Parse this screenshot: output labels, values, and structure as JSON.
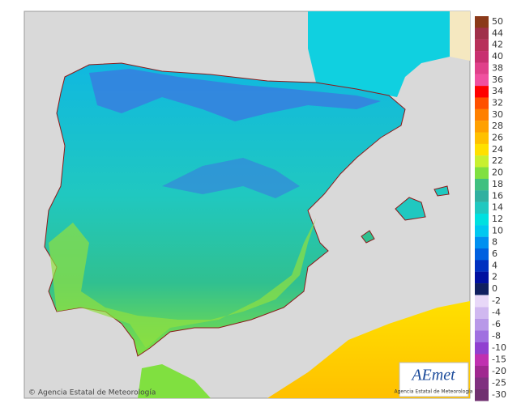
{
  "logo": {
    "name": "AEmet",
    "subtitle": "Agencia Estatal de Meteorología"
  },
  "credit": "© Agencia Estatal de Meteorología",
  "legend": {
    "items": [
      {
        "label": "50",
        "color": "#8b3a1a"
      },
      {
        "label": "44",
        "color": "#a0304a"
      },
      {
        "label": "42",
        "color": "#b8305a"
      },
      {
        "label": "40",
        "color": "#c83070"
      },
      {
        "label": "38",
        "color": "#e0408a"
      },
      {
        "label": "36",
        "color": "#f050a0"
      },
      {
        "label": "34",
        "color": "#ff0000"
      },
      {
        "label": "32",
        "color": "#ff5000"
      },
      {
        "label": "30",
        "color": "#ff8000"
      },
      {
        "label": "28",
        "color": "#ffa000"
      },
      {
        "label": "26",
        "color": "#ffc000"
      },
      {
        "label": "24",
        "color": "#ffe000"
      },
      {
        "label": "22",
        "color": "#c8f030"
      },
      {
        "label": "20",
        "color": "#80e040"
      },
      {
        "label": "18",
        "color": "#40c080"
      },
      {
        "label": "16",
        "color": "#30b0a0"
      },
      {
        "label": "14",
        "color": "#20c8c0"
      },
      {
        "label": "12",
        "color": "#00e0e0"
      },
      {
        "label": "10",
        "color": "#00c8f0"
      },
      {
        "label": "8",
        "color": "#0090f0"
      },
      {
        "label": "6",
        "color": "#0060e0"
      },
      {
        "label": "4",
        "color": "#0030c0"
      },
      {
        "label": "2",
        "color": "#0010a0"
      },
      {
        "label": "0",
        "color": "#102060"
      },
      {
        "label": "-2",
        "color": "#e8d8f8"
      },
      {
        "label": "-4",
        "color": "#d0b8f0"
      },
      {
        "label": "-6",
        "color": "#b898e8"
      },
      {
        "label": "-8",
        "color": "#a070e0"
      },
      {
        "label": "-10",
        "color": "#9040d0"
      },
      {
        "label": "-15",
        "color": "#c030b0"
      },
      {
        "label": "-20",
        "color": "#a02890"
      },
      {
        "label": "-25",
        "color": "#803080"
      },
      {
        "label": "-30",
        "color": "#703070"
      }
    ]
  }
}
